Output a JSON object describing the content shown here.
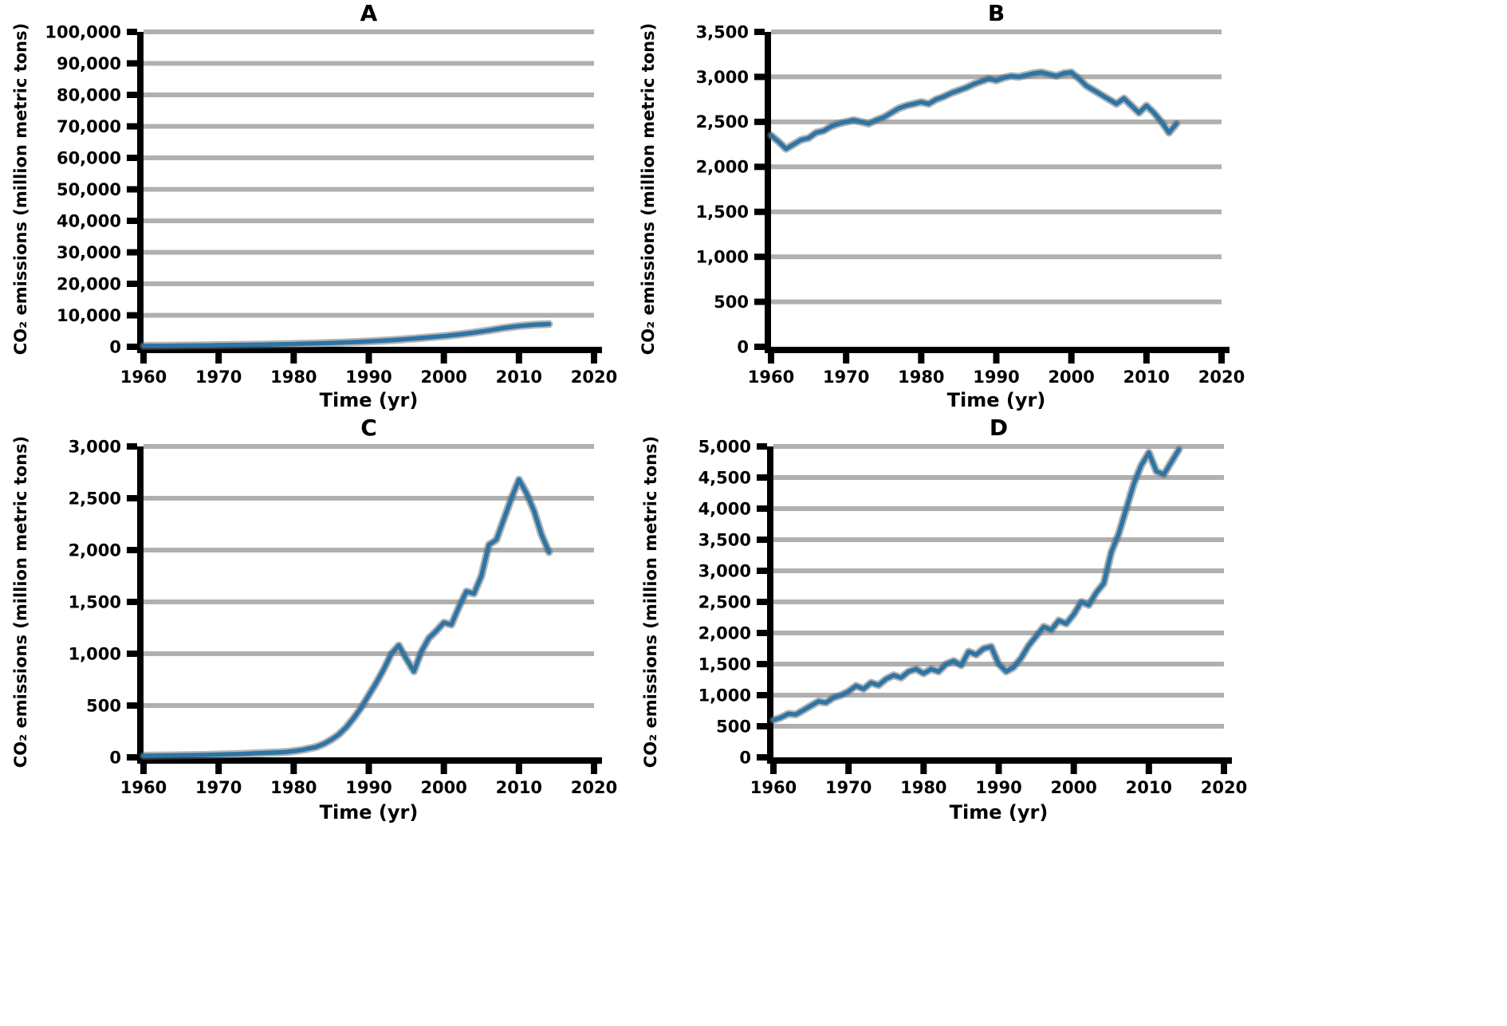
{
  "figure": {
    "background": "#ffffff",
    "line_color": "#2e75a6",
    "line_shadow_color": "#6e6e6e",
    "grid_color": "#b0b0b0",
    "axis_color": "#000000",
    "text_color": "#000000"
  },
  "chart_data": [
    {
      "type": "line",
      "title": "A",
      "xlabel": "Time (yr)",
      "ylabel": "CO₂ emissions (million metric tons)",
      "legend": "none",
      "grid": "horizontal",
      "xlim": [
        1960,
        2020
      ],
      "ylim": [
        0,
        100000
      ],
      "xticks": [
        1960,
        1970,
        1980,
        1990,
        2000,
        2010,
        2020
      ],
      "yticks": [
        0,
        10000,
        20000,
        30000,
        40000,
        50000,
        60000,
        70000,
        80000,
        90000,
        100000
      ],
      "x": [
        1960,
        1962,
        1964,
        1966,
        1968,
        1970,
        1972,
        1974,
        1976,
        1978,
        1980,
        1982,
        1984,
        1986,
        1988,
        1990,
        1992,
        1994,
        1996,
        1998,
        2000,
        2002,
        2004,
        2006,
        2008,
        2010,
        2012,
        2014
      ],
      "y": [
        300,
        330,
        360,
        400,
        450,
        500,
        560,
        620,
        700,
        800,
        900,
        1000,
        1150,
        1300,
        1500,
        1700,
        1950,
        2250,
        2600,
        3000,
        3400,
        3900,
        4500,
        5200,
        6000,
        6600,
        7000,
        7200
      ]
    },
    {
      "type": "line",
      "title": "B",
      "xlabel": "Time (yr)",
      "ylabel": "CO₂ emissions (million metric tons)",
      "legend": "none",
      "grid": "horizontal",
      "xlim": [
        1960,
        2020
      ],
      "ylim": [
        0,
        3500
      ],
      "xticks": [
        1960,
        1970,
        1980,
        1990,
        2000,
        2010,
        2020
      ],
      "yticks": [
        0,
        500,
        1000,
        1500,
        2000,
        2500,
        3000,
        3500
      ],
      "x": [
        1960,
        1961,
        1962,
        1963,
        1964,
        1965,
        1966,
        1967,
        1968,
        1969,
        1970,
        1971,
        1972,
        1973,
        1974,
        1975,
        1976,
        1977,
        1978,
        1979,
        1980,
        1981,
        1982,
        1983,
        1984,
        1985,
        1986,
        1987,
        1988,
        1989,
        1990,
        1991,
        1992,
        1993,
        1994,
        1995,
        1996,
        1997,
        1998,
        1999,
        2000,
        2001,
        2002,
        2003,
        2004,
        2005,
        2006,
        2007,
        2008,
        2009,
        2010,
        2011,
        2012,
        2013,
        2014
      ],
      "y": [
        2350,
        2280,
        2200,
        2250,
        2300,
        2320,
        2380,
        2400,
        2450,
        2480,
        2500,
        2520,
        2500,
        2480,
        2520,
        2550,
        2600,
        2650,
        2680,
        2700,
        2720,
        2700,
        2750,
        2780,
        2820,
        2850,
        2880,
        2920,
        2950,
        2980,
        2960,
        2990,
        3010,
        3000,
        3020,
        3040,
        3050,
        3030,
        3010,
        3040,
        3050,
        2980,
        2900,
        2850,
        2800,
        2750,
        2700,
        2760,
        2680,
        2600,
        2680,
        2600,
        2500,
        2380,
        2480
      ]
    },
    {
      "type": "line",
      "title": "C",
      "xlabel": "Time (yr)",
      "ylabel": "CO₂ emissions (million metric tons)",
      "legend": "none",
      "grid": "horizontal",
      "xlim": [
        1960,
        2020
      ],
      "ylim": [
        0,
        3000
      ],
      "xticks": [
        1960,
        1970,
        1980,
        1990,
        2000,
        2010,
        2020
      ],
      "yticks": [
        0,
        500,
        1000,
        1500,
        2000,
        2500,
        3000
      ],
      "x": [
        1960,
        1961,
        1962,
        1963,
        1964,
        1965,
        1966,
        1967,
        1968,
        1969,
        1970,
        1971,
        1972,
        1973,
        1974,
        1975,
        1976,
        1977,
        1978,
        1979,
        1980,
        1981,
        1982,
        1983,
        1984,
        1985,
        1986,
        1987,
        1988,
        1989,
        1990,
        1991,
        1992,
        1993,
        1994,
        1995,
        1996,
        1997,
        1998,
        1999,
        2000,
        2001,
        2002,
        2003,
        2004,
        2005,
        2006,
        2007,
        2008,
        2009,
        2010,
        2011,
        2012,
        2013,
        2014
      ],
      "y": [
        15,
        16,
        17,
        18,
        19,
        20,
        21,
        22,
        23,
        25,
        27,
        29,
        31,
        33,
        36,
        39,
        42,
        45,
        48,
        52,
        60,
        70,
        85,
        100,
        130,
        170,
        220,
        290,
        380,
        480,
        600,
        720,
        850,
        1000,
        1080,
        950,
        830,
        1020,
        1150,
        1220,
        1300,
        1280,
        1450,
        1600,
        1580,
        1750,
        2050,
        2100,
        2300,
        2500,
        2680,
        2550,
        2380,
        2150,
        1980
      ]
    },
    {
      "type": "line",
      "title": "D",
      "xlabel": "Time (yr)",
      "ylabel": "CO₂ emissions (million metric tons)",
      "legend": "none",
      "grid": "horizontal",
      "xlim": [
        1960,
        2020
      ],
      "ylim": [
        0,
        5000
      ],
      "xticks": [
        1960,
        1970,
        1980,
        1990,
        2000,
        2010,
        2020
      ],
      "yticks": [
        0,
        500,
        1000,
        1500,
        2000,
        2500,
        3000,
        3500,
        4000,
        4500,
        5000
      ],
      "x": [
        1960,
        1961,
        1962,
        1963,
        1964,
        1965,
        1966,
        1967,
        1968,
        1969,
        1970,
        1971,
        1972,
        1973,
        1974,
        1975,
        1976,
        1977,
        1978,
        1979,
        1980,
        1981,
        1982,
        1983,
        1984,
        1985,
        1986,
        1987,
        1988,
        1989,
        1990,
        1991,
        1992,
        1993,
        1994,
        1995,
        1996,
        1997,
        1998,
        1999,
        2000,
        2001,
        2002,
        2003,
        2004,
        2005,
        2006,
        2007,
        2008,
        2009,
        2010,
        2011,
        2012,
        2013,
        2014
      ],
      "y": [
        600,
        640,
        700,
        690,
        760,
        830,
        900,
        880,
        960,
        1000,
        1060,
        1150,
        1100,
        1200,
        1160,
        1260,
        1320,
        1280,
        1380,
        1420,
        1350,
        1420,
        1380,
        1500,
        1550,
        1480,
        1700,
        1650,
        1750,
        1780,
        1500,
        1380,
        1450,
        1600,
        1800,
        1950,
        2100,
        2050,
        2200,
        2150,
        2300,
        2500,
        2450,
        2650,
        2800,
        3300,
        3600,
        4000,
        4400,
        4700,
        4900,
        4600,
        4550,
        4750,
        4950
      ]
    }
  ]
}
